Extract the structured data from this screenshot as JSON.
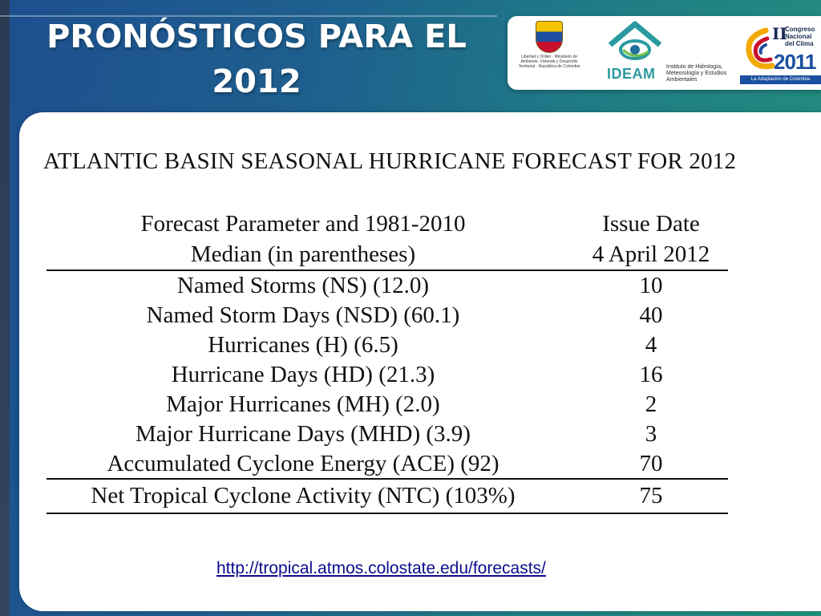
{
  "slide": {
    "title_line1": "PRONÓSTICOS PARA EL",
    "title_line2": "2012"
  },
  "logos": {
    "crest_caption": "Libertad y Orden · Ministerio de Ambiente, Vivienda y Desarrollo Territorial · República de Colombia",
    "ideam_name": "IDEAM",
    "ideam_subtitle": "Instituto de Hidrología, Meteorología y Estudios Ambientales",
    "congress_number": "II",
    "congress_text": "Congreso Nacional del Clima",
    "congress_year": "2011",
    "congress_tagline": "La Adaptación de Colombia"
  },
  "document": {
    "title": "ATLANTIC BASIN SEASONAL HURRICANE FORECAST FOR 2012",
    "header": {
      "param_line1": "Forecast Parameter and 1981-2010",
      "param_line2": "Median (in parentheses)",
      "issue_line1": "Issue Date",
      "issue_line2": "4 April 2012"
    },
    "rows": [
      {
        "parameter": "Named Storms (NS) (12.0)",
        "value": "10"
      },
      {
        "parameter": "Named Storm Days (NSD) (60.1)",
        "value": "40"
      },
      {
        "parameter": "Hurricanes (H) (6.5)",
        "value": "4"
      },
      {
        "parameter": "Hurricane Days (HD) (21.3)",
        "value": "16"
      },
      {
        "parameter": "Major Hurricanes (MH) (2.0)",
        "value": "2"
      },
      {
        "parameter": "Major Hurricane Days (MHD) (3.9)",
        "value": "3"
      },
      {
        "parameter": "Accumulated Cyclone Energy (ACE) (92)",
        "value": "70"
      },
      {
        "parameter": "Net Tropical Cyclone Activity (NTC) (103%)",
        "value": "75"
      }
    ],
    "url": "http://tropical.atmos.colostate.edu/forecasts/"
  },
  "colors": {
    "background_start": "#1d4f8f",
    "background_end": "#23907c",
    "link": "#0b0b8c"
  }
}
